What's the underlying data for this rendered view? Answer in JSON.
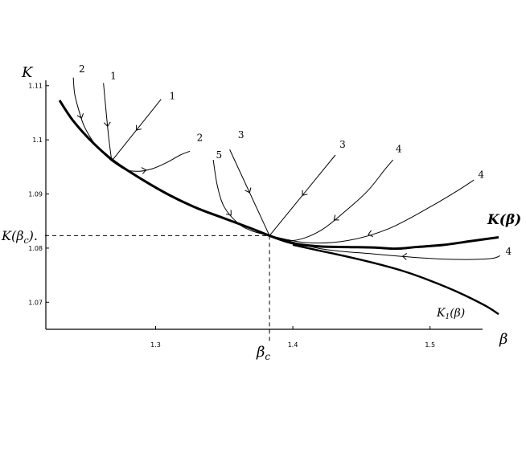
{
  "chart_data": {
    "type": "line",
    "title": "",
    "xlabel": "β",
    "ylabel": "K",
    "xlim": [
      1.22,
      1.55
    ],
    "ylim": [
      1.065,
      1.111
    ],
    "grid": false,
    "legend": "none",
    "x_ticks": [
      {
        "value": 1.3,
        "label": "1.3"
      },
      {
        "value": 1.4,
        "label": "1.4"
      },
      {
        "value": 1.5,
        "label": "1.5"
      }
    ],
    "y_ticks": [
      {
        "value": 1.11,
        "label": "1.11"
      },
      {
        "value": 1.1,
        "label": "1.1"
      },
      {
        "value": 1.09,
        "label": "1.09"
      },
      {
        "value": 1.08,
        "label": "1.08"
      },
      {
        "value": 1.07,
        "label": "1.07"
      }
    ],
    "critical_point": {
      "x": 1.383,
      "y": 1.0823,
      "x_label": "β",
      "x_label_sub": "c",
      "y_label": "K(β",
      "y_label_sub": "c",
      "y_label_tail": ")."
    },
    "series": [
      {
        "name": "K(β)",
        "width": 3,
        "x": [
          1.23,
          1.24,
          1.255,
          1.27,
          1.29,
          1.31,
          1.33,
          1.35,
          1.37,
          1.383,
          1.4,
          1.42,
          1.44,
          1.46,
          1.475,
          1.49,
          1.51,
          1.53,
          1.55
        ],
        "y": [
          1.1073,
          1.1035,
          1.0993,
          1.096,
          1.0927,
          1.0898,
          1.0874,
          1.0855,
          1.0836,
          1.0823,
          1.0809,
          1.0803,
          1.0802,
          1.0801,
          1.0799,
          1.0802,
          1.0806,
          1.0813,
          1.082
        ]
      },
      {
        "name": "K1(β)",
        "width": 2.4,
        "x": [
          1.4,
          1.42,
          1.44,
          1.46,
          1.48,
          1.5,
          1.52,
          1.54,
          1.55
        ],
        "y": [
          1.0806,
          1.0795,
          1.0784,
          1.0772,
          1.0758,
          1.074,
          1.0719,
          1.0694,
          1.0678
        ]
      },
      {
        "name": "traj-2-upper",
        "width": 1,
        "x": [
          1.24,
          1.241,
          1.244,
          1.248,
          1.255,
          1.262,
          1.268
        ],
        "y": [
          1.1115,
          1.1085,
          1.1055,
          1.1025,
          1.0995,
          1.0975,
          1.0961
        ]
      },
      {
        "name": "traj-1-vertical",
        "width": 1,
        "x": [
          1.262,
          1.264,
          1.266,
          1.268
        ],
        "y": [
          1.1105,
          1.105,
          1.1,
          1.0961
        ]
      },
      {
        "name": "traj-1-diagonal",
        "width": 1,
        "x": [
          1.304,
          1.268
        ],
        "y": [
          1.1075,
          1.0961
        ]
      },
      {
        "name": "traj-2-lower",
        "width": 1,
        "x": [
          1.268,
          1.278,
          1.288,
          1.298,
          1.308,
          1.318,
          1.325
        ],
        "y": [
          1.0961,
          1.0945,
          1.0942,
          1.0947,
          1.0958,
          1.0972,
          1.0979
        ]
      },
      {
        "name": "traj-5",
        "width": 1,
        "x": [
          1.342,
          1.345,
          1.35,
          1.36,
          1.37,
          1.383
        ],
        "y": [
          1.0963,
          1.0915,
          1.0876,
          1.0846,
          1.0832,
          1.0823
        ]
      },
      {
        "name": "traj-3-left",
        "width": 1,
        "x": [
          1.354,
          1.383
        ],
        "y": [
          1.0982,
          1.0823
        ]
      },
      {
        "name": "traj-3-right",
        "width": 1,
        "x": [
          1.431,
          1.383
        ],
        "y": [
          1.0972,
          1.0823
        ]
      },
      {
        "name": "traj-4-a",
        "width": 1,
        "x": [
          1.383,
          1.4,
          1.42,
          1.44,
          1.455,
          1.467,
          1.473
        ],
        "y": [
          1.0823,
          1.0814,
          1.0832,
          1.0872,
          1.0907,
          1.0945,
          1.0963
        ]
      },
      {
        "name": "traj-4-b",
        "width": 1,
        "x": [
          1.383,
          1.41,
          1.44,
          1.47,
          1.5,
          1.52,
          1.532
        ],
        "y": [
          1.0823,
          1.081,
          1.0814,
          1.0836,
          1.0876,
          1.0906,
          1.0926
        ]
      },
      {
        "name": "traj-4-c",
        "width": 1,
        "x": [
          1.383,
          1.42,
          1.46,
          1.5,
          1.525,
          1.545,
          1.551
        ],
        "y": [
          1.0823,
          1.0799,
          1.0789,
          1.0781,
          1.0779,
          1.0781,
          1.0786
        ]
      }
    ],
    "curve_labels": [
      {
        "text": "2",
        "x": 1.244,
        "y": 1.1125
      },
      {
        "text": "1",
        "x": 1.267,
        "y": 1.1112
      },
      {
        "text": "1",
        "x": 1.31,
        "y": 1.1075
      },
      {
        "text": "2",
        "x": 1.33,
        "y": 1.0998
      },
      {
        "text": "3",
        "x": 1.36,
        "y": 1.1003
      },
      {
        "text": "5",
        "x": 1.344,
        "y": 1.0966
      },
      {
        "text": "3",
        "x": 1.434,
        "y": 1.0985
      },
      {
        "text": "4",
        "x": 1.475,
        "y": 1.0977
      },
      {
        "text": "4",
        "x": 1.535,
        "y": 1.093
      },
      {
        "text": "4",
        "x": 1.555,
        "y": 1.0788
      }
    ],
    "series_labels": {
      "k_beta": "K(β)",
      "k1_main": "K",
      "k1_sub": "1",
      "k1_tail": "(β)"
    }
  }
}
